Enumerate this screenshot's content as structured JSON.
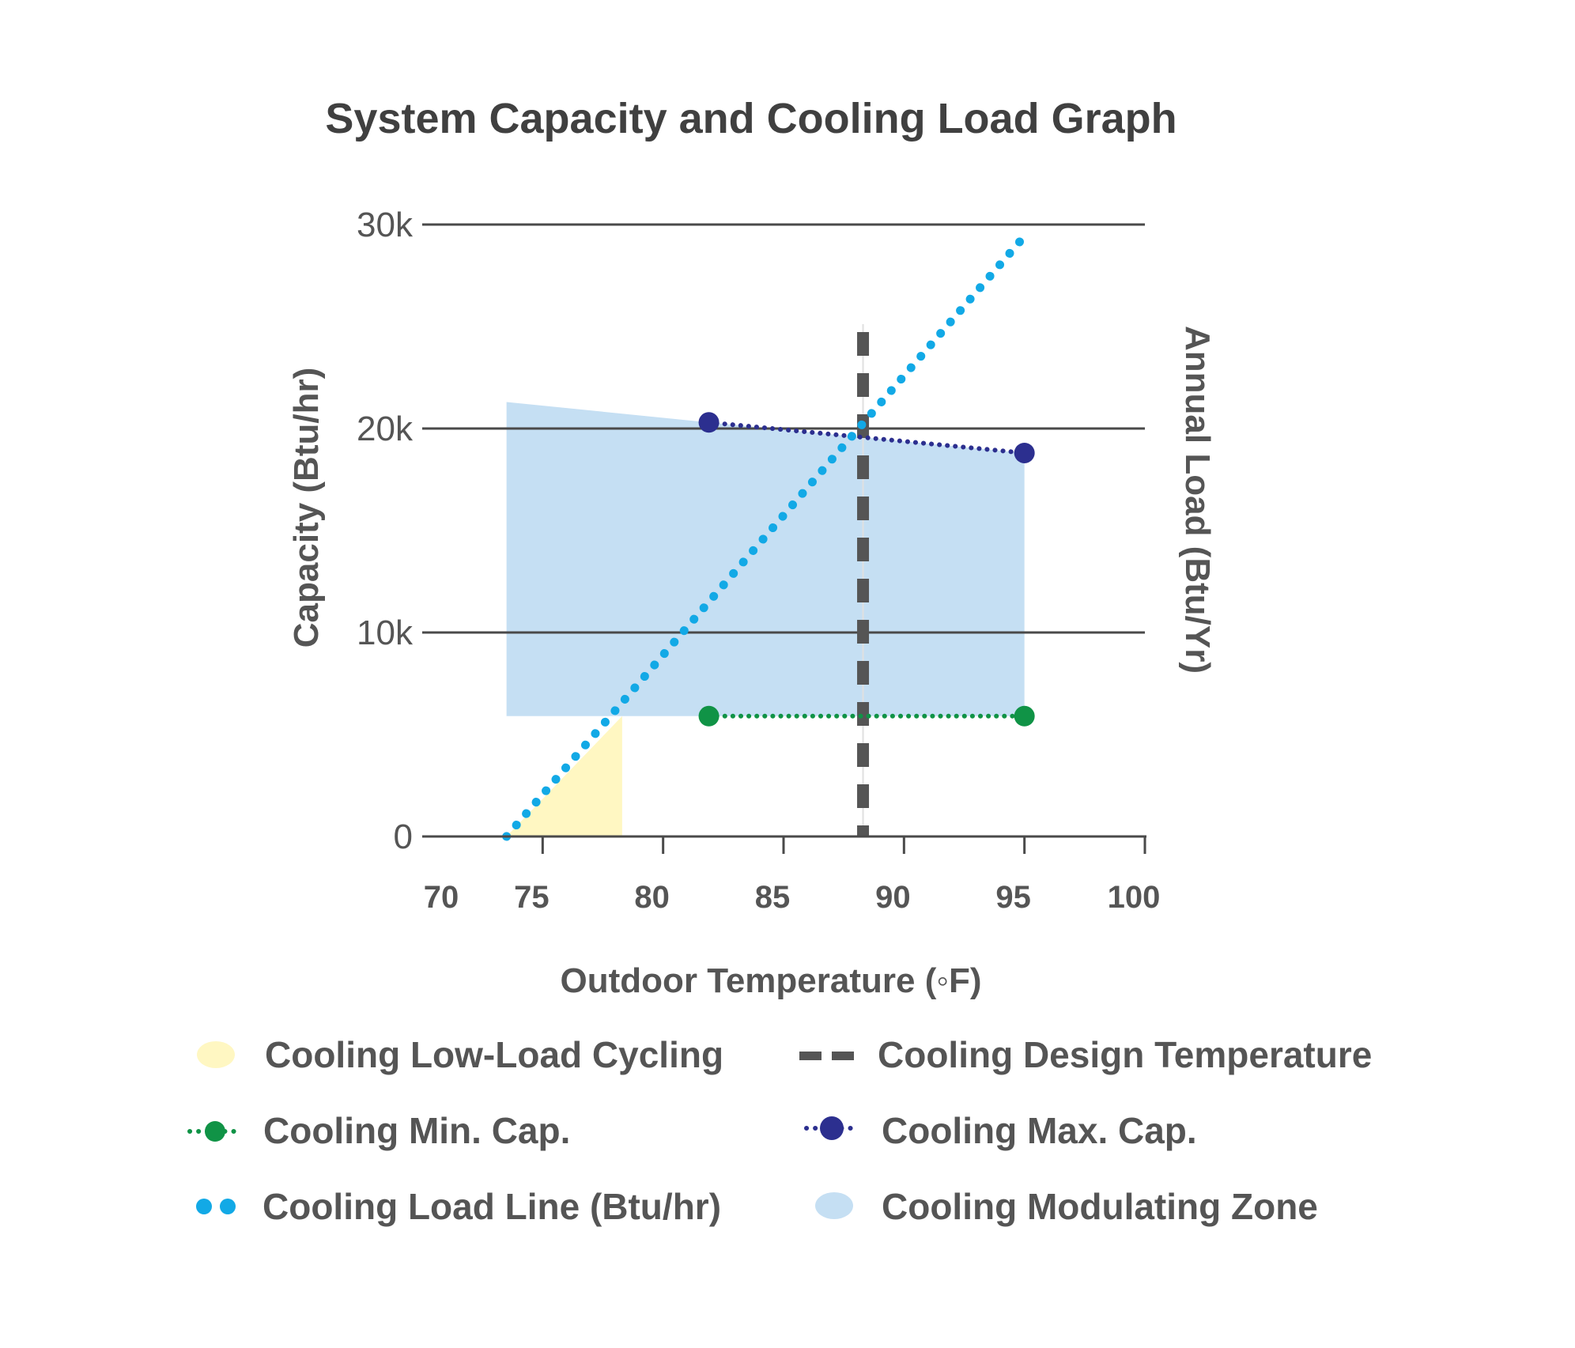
{
  "chart_data": {
    "type": "line",
    "title": "System Capacity and Cooling Load Graph",
    "xlabel": "Outdoor Temperature (◦F)",
    "ylabel": "Capacity (Btu/hr)",
    "y2label": "Annual Load (Btu/Yr)",
    "xlim": [
      70,
      100
    ],
    "ylim": [
      0,
      30000
    ],
    "x_ticks": [
      "70",
      "75",
      "80",
      "85",
      "90",
      "95",
      "100"
    ],
    "x_tick_values": [
      70,
      75,
      80,
      85,
      90,
      95,
      100
    ],
    "y_ticks": [
      "0",
      "10k",
      "20k",
      "30k"
    ],
    "y_tick_values": [
      0,
      10000,
      20000,
      30000
    ],
    "grid": true,
    "legend_position": "bottom",
    "series": [
      {
        "name": "Cooling Low-Load Cycling",
        "kind": "area",
        "color": "#fff7c2",
        "x": [
          73.5,
          78.3,
          78.3
        ],
        "y": [
          0,
          5900,
          0
        ]
      },
      {
        "name": "Cooling Design Temperature",
        "kind": "vline",
        "color": "#555555",
        "x": 88.3
      },
      {
        "name": "Cooling Min. Cap.",
        "kind": "dotted-line",
        "color": "#109346",
        "x": [
          81.9,
          95.0
        ],
        "y": [
          5900,
          5900
        ]
      },
      {
        "name": "Cooling Max. Cap.",
        "kind": "dotted-line",
        "color": "#2c2f8f",
        "x": [
          81.9,
          95.0
        ],
        "y": [
          20300,
          18800
        ]
      },
      {
        "name": "Cooling Load Line (Btu/hr)",
        "kind": "dotted-line",
        "color": "#12a9e6",
        "x": [
          73.5,
          95.2
        ],
        "y": [
          0,
          29700
        ]
      },
      {
        "name": "Cooling Modulating Zone",
        "kind": "area",
        "color": "#c5dff3",
        "x": [
          73.5,
          81.9,
          95.0,
          95.0,
          73.5
        ],
        "y": [
          21300,
          20300,
          18800,
          5900,
          5900
        ]
      }
    ]
  },
  "legend": [
    {
      "label": "Cooling Low-Load Cycling",
      "icon": "yellow-ellipse-icon"
    },
    {
      "label": "Cooling Design Temperature",
      "icon": "dash-line-icon"
    },
    {
      "label": "Cooling Min. Cap.",
      "icon": "green-dotted-marker-icon"
    },
    {
      "label": "Cooling Max. Cap.",
      "icon": "navy-dotted-marker-icon"
    },
    {
      "label": "Cooling Load Line (Btu/hr)",
      "icon": "blue-dots-icon"
    },
    {
      "label": "Cooling Modulating Zone",
      "icon": "light-blue-ellipse-icon"
    }
  ]
}
